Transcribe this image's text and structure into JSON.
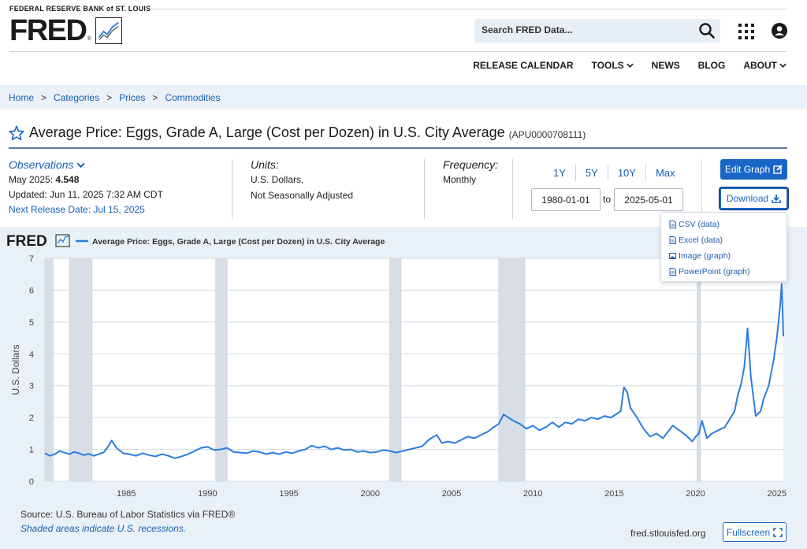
{
  "header": {
    "bank_name": "FEDERAL RESERVE BANK of ST. LOUIS",
    "logo_text": "FRED",
    "logo_mark": "®",
    "search_placeholder": "Search FRED Data...",
    "nav": [
      {
        "label": "RELEASE CALENDAR",
        "dropdown": false
      },
      {
        "label": "TOOLS",
        "dropdown": true
      },
      {
        "label": "NEWS",
        "dropdown": false
      },
      {
        "label": "BLOG",
        "dropdown": false
      },
      {
        "label": "ABOUT",
        "dropdown": true
      }
    ]
  },
  "breadcrumb": [
    "Home",
    "Categories",
    "Prices",
    "Commodities"
  ],
  "breadcrumb_sep": ">",
  "series": {
    "title": "Average Price: Eggs, Grade A, Large (Cost per Dozen) in U.S. City Average",
    "id": "(APU0000708111)"
  },
  "observations": {
    "label": "Observations",
    "latest_prefix": "May 2025: ",
    "latest_value": "4.548",
    "updated": "Updated: Jun 11, 2025 7:32 AM CDT",
    "next_release": "Next Release Date: Jul 15, 2025"
  },
  "units": {
    "label": "Units:",
    "line1": "U.S. Dollars,",
    "line2": "Not Seasonally Adjusted"
  },
  "frequency": {
    "label": "Frequency:",
    "value": "Monthly"
  },
  "range_buttons": [
    "1Y",
    "5Y",
    "10Y",
    "Max"
  ],
  "date_range": {
    "start": "1980-01-01",
    "end": "2025-05-01",
    "to_label": "to"
  },
  "buttons": {
    "edit_graph": "Edit Graph",
    "download": "Download",
    "fullscreen": "Fullscreen"
  },
  "download_menu": [
    "CSV (data)",
    "Excel (data)",
    "Image (graph)",
    "PowerPoint (graph)"
  ],
  "footer": {
    "source": "Source: U.S. Bureau of Labor Statistics via FRED®",
    "shaded_note": "Shaded areas indicate U.S. recessions.",
    "site": "fred.stlouisfed.org"
  },
  "colors": {
    "accent": "#1a66c7",
    "line": "#2b7de0",
    "recession": "#d7dee6",
    "plot_bg": "#ffffff",
    "chart_bg": "#e9f0f7"
  },
  "chart_data": {
    "type": "line",
    "legend_brand": "FRED",
    "title": "Average Price: Eggs, Grade A, Large (Cost per Dozen) in U.S. City Average",
    "xlabel": "",
    "ylabel": "U.S. Dollars",
    "xlim": [
      1980.0,
      2025.4
    ],
    "ylim": [
      0,
      7
    ],
    "yticks": [
      0,
      1,
      2,
      3,
      4,
      5,
      6,
      7
    ],
    "xticks": [
      1985,
      1990,
      1995,
      2000,
      2005,
      2010,
      2015,
      2020,
      2025
    ],
    "grid": true,
    "recessions": [
      [
        1980.0,
        1980.5
      ],
      [
        1981.5,
        1982.9
      ],
      [
        1990.5,
        1991.2
      ],
      [
        2001.2,
        2001.9
      ],
      [
        2007.9,
        2009.5
      ],
      [
        2020.1,
        2020.3
      ]
    ],
    "series": [
      {
        "x": [
          1980.0,
          1980.3,
          1980.6,
          1980.9,
          1981.2,
          1981.5,
          1981.8,
          1982.1,
          1982.4,
          1982.7,
          1983.0,
          1983.3,
          1983.6,
          1983.9,
          1984.1,
          1984.4,
          1984.8,
          1985.2,
          1985.6,
          1986.0,
          1986.4,
          1986.8,
          1987.2,
          1987.6,
          1988.0,
          1988.4,
          1988.8,
          1989.2,
          1989.6,
          1990.0,
          1990.4,
          1990.8,
          1991.2,
          1991.6,
          1992.0,
          1992.4,
          1992.8,
          1993.2,
          1993.6,
          1994.0,
          1994.4,
          1994.8,
          1995.2,
          1995.6,
          1996.0,
          1996.4,
          1996.8,
          1997.2,
          1997.6,
          1998.0,
          1998.4,
          1998.8,
          1999.2,
          1999.6,
          2000.0,
          2000.4,
          2000.8,
          2001.2,
          2001.6,
          2002.0,
          2002.4,
          2002.8,
          2003.2,
          2003.6,
          2003.9,
          2004.1,
          2004.4,
          2004.8,
          2005.2,
          2005.6,
          2006.0,
          2006.4,
          2006.8,
          2007.2,
          2007.6,
          2007.9,
          2008.2,
          2008.5,
          2008.8,
          2009.2,
          2009.6,
          2010.0,
          2010.4,
          2010.8,
          2011.2,
          2011.6,
          2012.0,
          2012.4,
          2012.8,
          2013.2,
          2013.6,
          2014.0,
          2014.4,
          2014.8,
          2015.1,
          2015.4,
          2015.6,
          2015.8,
          2016.0,
          2016.4,
          2016.8,
          2017.2,
          2017.6,
          2018.0,
          2018.3,
          2018.6,
          2019.0,
          2019.4,
          2019.8,
          2020.0,
          2020.2,
          2020.4,
          2020.7,
          2021.0,
          2021.4,
          2021.8,
          2022.1,
          2022.4,
          2022.6,
          2022.8,
          2023.0,
          2023.2,
          2023.4,
          2023.7,
          2024.0,
          2024.2,
          2024.5,
          2024.8,
          2025.0,
          2025.1,
          2025.2,
          2025.3,
          2025.4
        ],
        "y": [
          0.88,
          0.8,
          0.85,
          0.95,
          0.9,
          0.85,
          0.92,
          0.88,
          0.82,
          0.86,
          0.8,
          0.85,
          0.9,
          1.1,
          1.28,
          1.05,
          0.88,
          0.85,
          0.8,
          0.88,
          0.82,
          0.78,
          0.85,
          0.8,
          0.72,
          0.78,
          0.85,
          0.95,
          1.05,
          1.08,
          0.98,
          1.0,
          1.05,
          0.92,
          0.9,
          0.88,
          0.95,
          0.92,
          0.85,
          0.9,
          0.85,
          0.92,
          0.88,
          0.95,
          1.0,
          1.12,
          1.05,
          1.1,
          1.0,
          1.05,
          0.98,
          1.0,
          0.92,
          0.95,
          0.9,
          0.92,
          0.98,
          0.95,
          0.9,
          0.95,
          1.0,
          1.05,
          1.1,
          1.3,
          1.4,
          1.45,
          1.2,
          1.25,
          1.2,
          1.3,
          1.4,
          1.35,
          1.45,
          1.55,
          1.7,
          1.8,
          2.1,
          2.0,
          1.9,
          1.8,
          1.65,
          1.75,
          1.6,
          1.7,
          1.85,
          1.7,
          1.85,
          1.8,
          1.95,
          1.9,
          2.0,
          1.95,
          2.05,
          2.0,
          2.1,
          2.2,
          2.95,
          2.8,
          2.3,
          2.0,
          1.65,
          1.4,
          1.5,
          1.35,
          1.55,
          1.75,
          1.6,
          1.45,
          1.25,
          1.4,
          1.5,
          1.9,
          1.35,
          1.5,
          1.6,
          1.7,
          1.95,
          2.2,
          2.7,
          3.05,
          3.6,
          4.8,
          3.3,
          2.05,
          2.2,
          2.6,
          3.0,
          3.8,
          4.5,
          5.0,
          5.5,
          6.2,
          4.55
        ]
      }
    ]
  }
}
